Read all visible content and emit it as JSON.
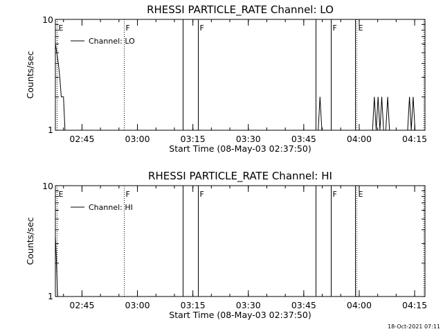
{
  "footer": {
    "timestamp": "18-Oct-2021 07:11"
  },
  "chart_data": [
    {
      "type": "line",
      "title": "RHESSI PARTICLE_RATE Channel: LO",
      "xlabel": "Start Time (08-May-03 02:37:50)",
      "ylabel": "Counts/sec",
      "yscale": "log",
      "ylim": [
        1,
        10
      ],
      "xlim_minutes": [
        0,
        100
      ],
      "ytick_labels": [
        "1",
        "10"
      ],
      "xtick_labels": [
        "02:45",
        "03:00",
        "03:15",
        "03:30",
        "03:45",
        "04:00",
        "04:15"
      ],
      "xtick_minutes": [
        7.2,
        22.2,
        37.2,
        52.2,
        67.2,
        82.2,
        97.2
      ],
      "legend": {
        "label": "Channel: LO",
        "placement": "top-left"
      },
      "series": [
        {
          "name": "Channel: LO",
          "segments": [
            [
              [
                0,
                6
              ],
              [
                0.4,
                5
              ],
              [
                0.8,
                4
              ],
              [
                1.2,
                3
              ],
              [
                1.6,
                2
              ],
              [
                2.2,
                2
              ],
              [
                2.6,
                1
              ]
            ],
            [
              [
                71.1,
                1
              ],
              [
                71.6,
                2
              ],
              [
                72.1,
                1
              ]
            ],
            [
              [
                85.8,
                1
              ],
              [
                86.3,
                2
              ],
              [
                86.8,
                1
              ],
              [
                87.3,
                2
              ],
              [
                87.8,
                1
              ],
              [
                88.3,
                2
              ],
              [
                88.8,
                1
              ]
            ],
            [
              [
                89.4,
                1
              ],
              [
                89.9,
                2
              ],
              [
                90.4,
                1
              ]
            ],
            [
              [
                95.3,
                1
              ],
              [
                95.8,
                2
              ],
              [
                96.3,
                1
              ],
              [
                96.8,
                2
              ],
              [
                97.3,
                1
              ]
            ]
          ]
        }
      ],
      "markers": [
        {
          "label": "E",
          "minute": 0.3,
          "style": "dotted"
        },
        {
          "label": "F",
          "minute": 18.5,
          "style": "dotted"
        },
        {
          "label": "",
          "minute": 34.5,
          "style": "solid"
        },
        {
          "label": "F",
          "minute": 38.5,
          "style": "solid"
        },
        {
          "label": "",
          "minute": 70.5,
          "style": "solid"
        },
        {
          "label": "F",
          "minute": 74.5,
          "style": "solid"
        },
        {
          "label": "",
          "minute": 81.1,
          "style": "solid"
        },
        {
          "label": "E",
          "minute": 81.5,
          "style": "dotted"
        },
        {
          "label": "",
          "minute": 99.6,
          "style": "dotted"
        }
      ]
    },
    {
      "type": "line",
      "title": "RHESSI PARTICLE_RATE Channel: HI",
      "xlabel": "Start Time (08-May-03 02:37:50)",
      "ylabel": "Counts/sec",
      "yscale": "log",
      "ylim": [
        1,
        10
      ],
      "xlim_minutes": [
        0,
        100
      ],
      "ytick_labels": [
        "1",
        "10"
      ],
      "xtick_labels": [
        "02:45",
        "03:00",
        "03:15",
        "03:30",
        "03:45",
        "04:00",
        "04:15"
      ],
      "xtick_minutes": [
        7.2,
        22.2,
        37.2,
        52.2,
        67.2,
        82.2,
        97.2
      ],
      "legend": {
        "label": "Channel: HI",
        "placement": "top-left"
      },
      "series": [
        {
          "name": "Channel: HI",
          "segments": [
            [
              [
                0,
                3.5
              ],
              [
                0.2,
                2.5
              ],
              [
                0.4,
                1.6
              ],
              [
                0.6,
                1
              ]
            ]
          ]
        }
      ],
      "markers": [
        {
          "label": "E",
          "minute": 0.3,
          "style": "dotted"
        },
        {
          "label": "F",
          "minute": 18.5,
          "style": "dotted"
        },
        {
          "label": "",
          "minute": 34.5,
          "style": "solid"
        },
        {
          "label": "F",
          "minute": 38.5,
          "style": "solid"
        },
        {
          "label": "",
          "minute": 70.5,
          "style": "solid"
        },
        {
          "label": "F",
          "minute": 74.5,
          "style": "solid"
        },
        {
          "label": "",
          "minute": 81.1,
          "style": "solid"
        },
        {
          "label": "E",
          "minute": 81.5,
          "style": "dotted"
        },
        {
          "label": "",
          "minute": 99.6,
          "style": "dotted"
        }
      ]
    }
  ]
}
